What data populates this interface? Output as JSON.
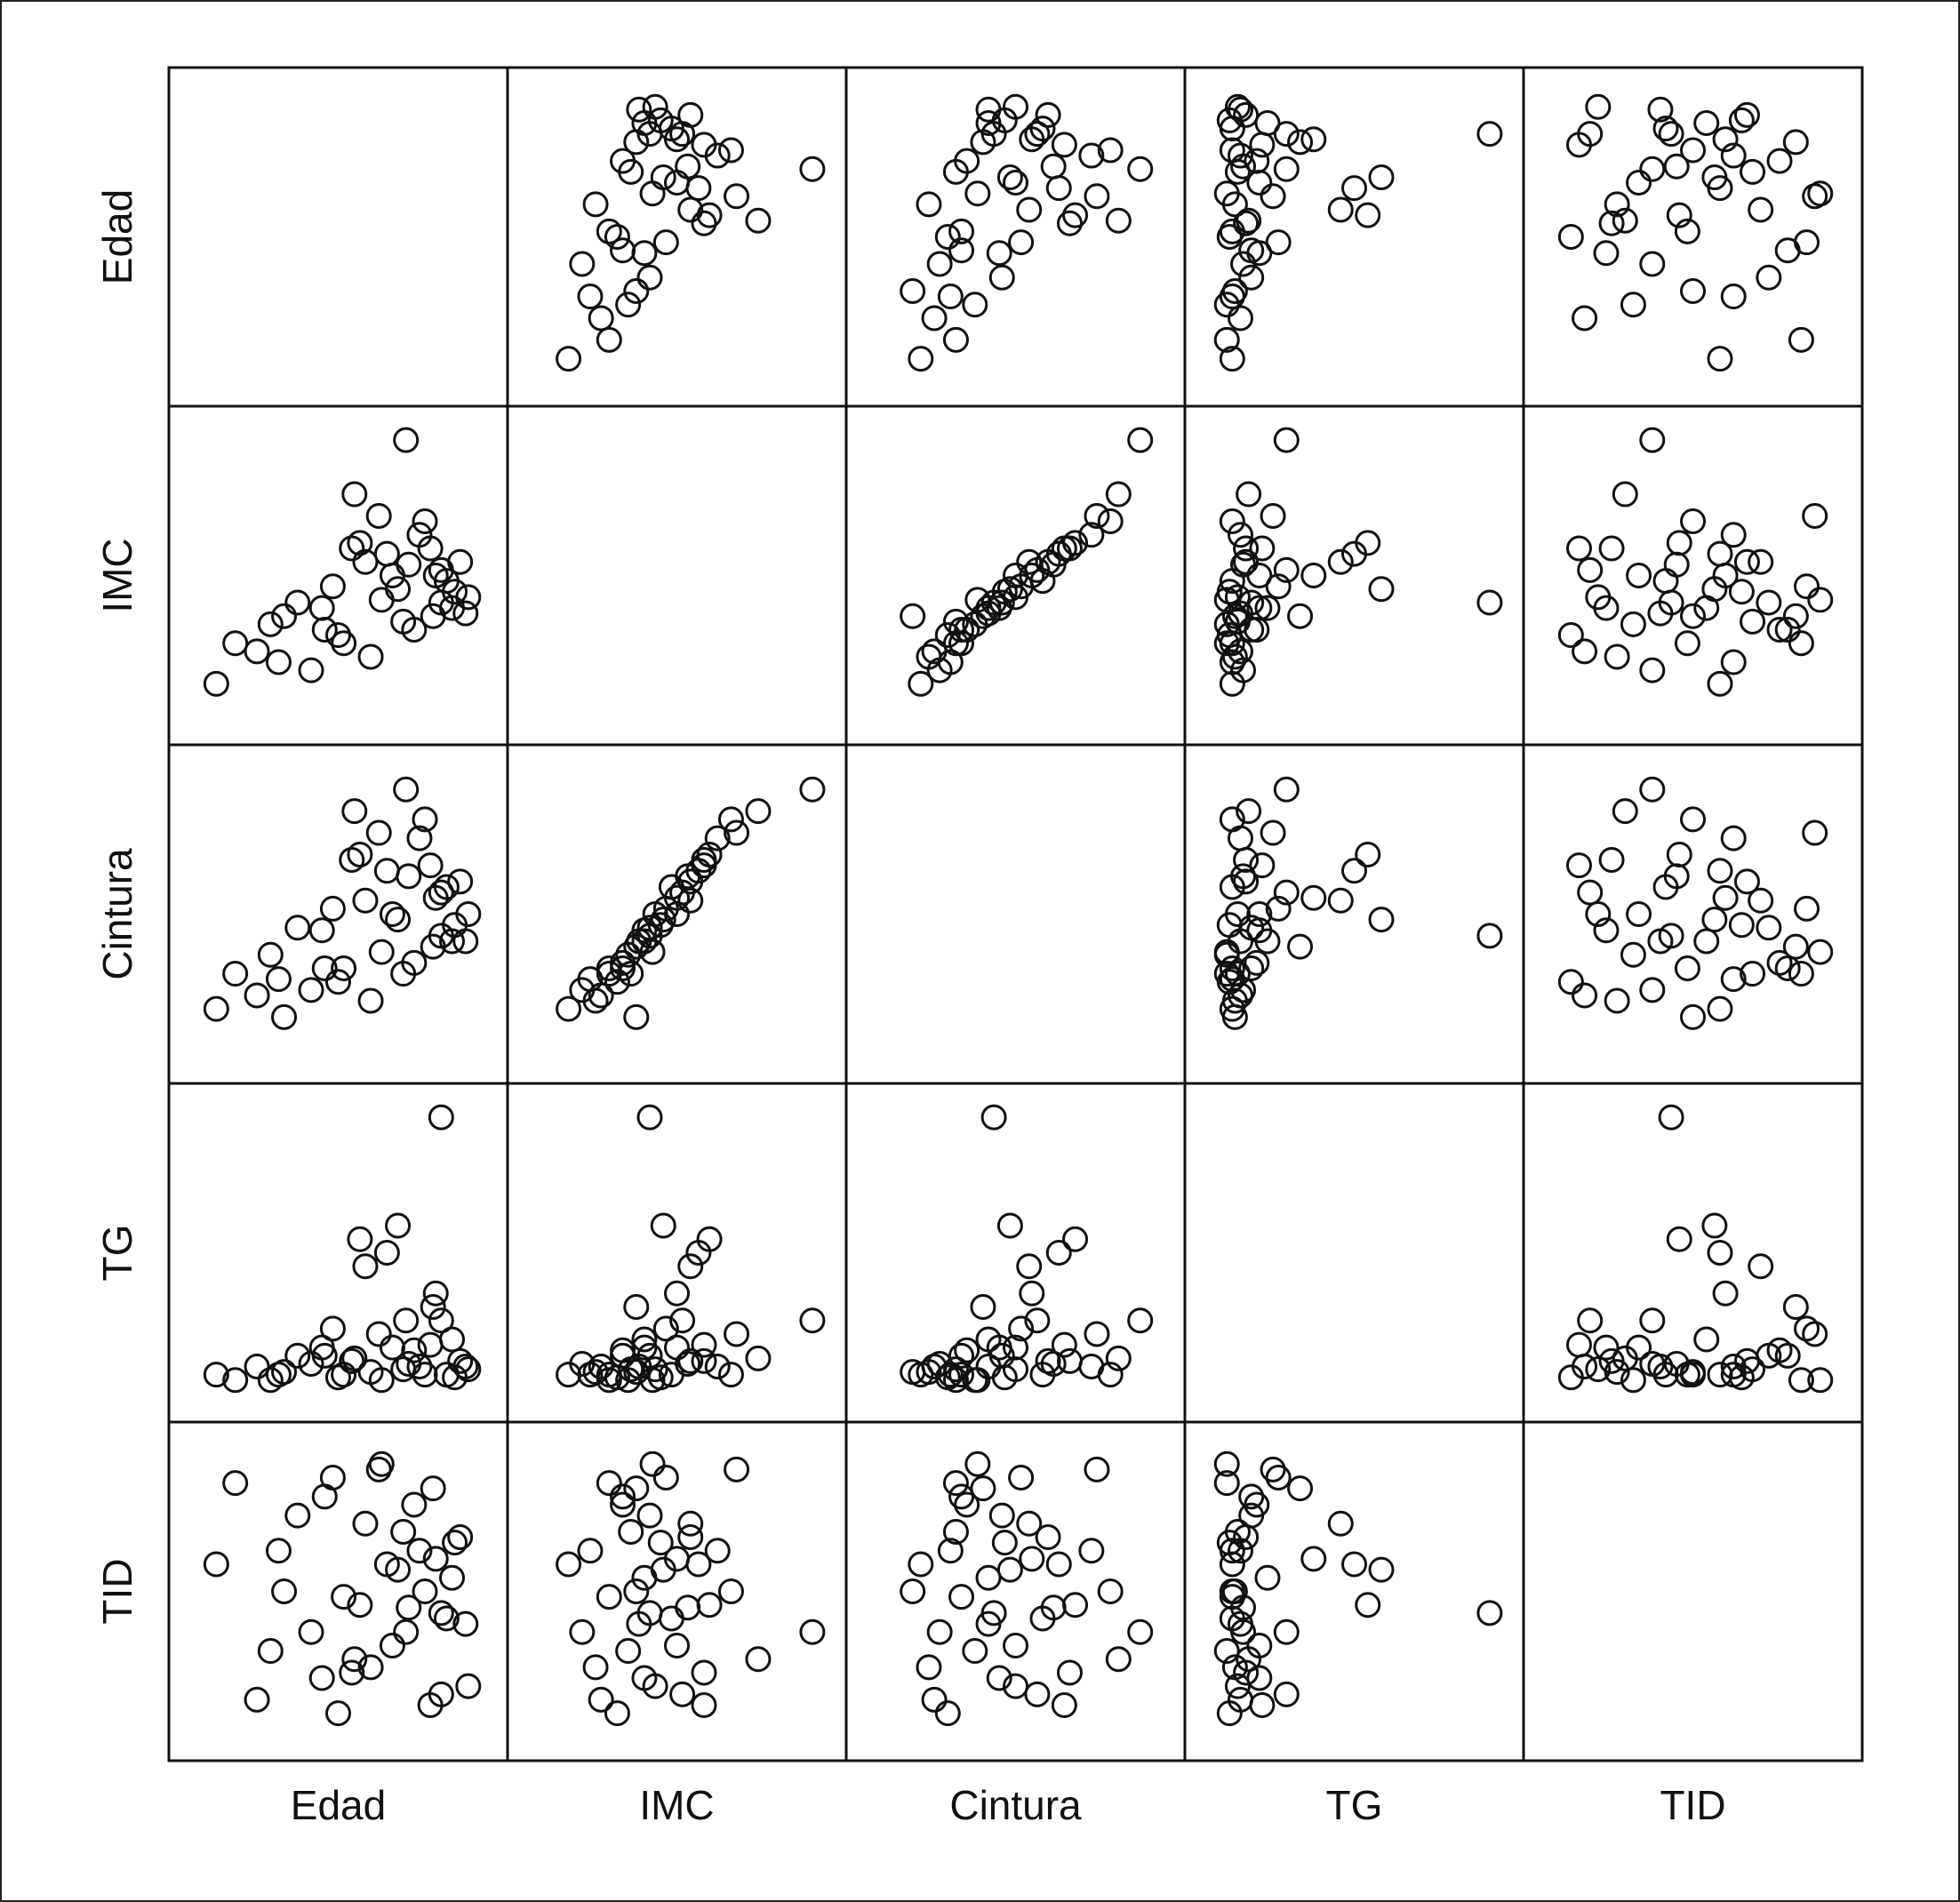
{
  "chart_data": {
    "type": "scatter_matrix",
    "xlim": [
      0,
      100
    ],
    "ylim": [
      0,
      100
    ],
    "series": [
      {
        "name": "Edad",
        "values": [
          88,
          75,
          20,
          5,
          12,
          30,
          45,
          55,
          60,
          65,
          70,
          72,
          80,
          85,
          90,
          95,
          98,
          92,
          50,
          40,
          35,
          25,
          58,
          62,
          68,
          78,
          82,
          88,
          93,
          97,
          48,
          52,
          56,
          74,
          84,
          86,
          66,
          76,
          28,
          44
        ]
      },
      {
        "name": "IMC",
        "values": [
          40,
          100,
          22,
          10,
          25,
          35,
          30,
          60,
          55,
          72,
          50,
          45,
          65,
          35,
          48,
          55,
          42,
          38,
          28,
          15,
          40,
          32,
          62,
          20,
          58,
          30,
          70,
          52,
          44,
          36,
          46,
          25,
          80,
          33,
          60,
          50,
          41,
          54,
          18,
          38
        ]
      },
      {
        "name": "Cintura",
        "values": [
          42,
          96,
          20,
          15,
          28,
          12,
          30,
          70,
          55,
          80,
          50,
          48,
          78,
          38,
          60,
          62,
          50,
          40,
          25,
          22,
          45,
          35,
          72,
          18,
          66,
          32,
          85,
          58,
          46,
          40,
          52,
          30,
          88,
          28,
          68,
          56,
          36,
          64,
          26,
          44
        ]
      },
      {
        "name": "TG",
        "values": [
          100,
          25,
          8,
          5,
          3,
          6,
          12,
          10,
          45,
          20,
          15,
          60,
          8,
          30,
          5,
          10,
          7,
          18,
          4,
          9,
          12,
          3,
          55,
          6,
          50,
          14,
          5,
          25,
          4,
          8,
          22,
          5,
          11,
          7,
          16,
          35,
          3,
          9,
          5,
          15
        ]
      },
      {
        "name": "TID",
        "values": [
          42,
          35,
          10,
          60,
          90,
          50,
          85,
          20,
          75,
          95,
          30,
          58,
          65,
          88,
          40,
          70,
          15,
          55,
          5,
          35,
          78,
          28,
          45,
          22,
          60,
          82,
          50,
          12,
          68,
          38,
          92,
          48,
          25,
          72,
          8,
          62,
          97,
          44,
          65,
          18
        ]
      }
    ]
  }
}
